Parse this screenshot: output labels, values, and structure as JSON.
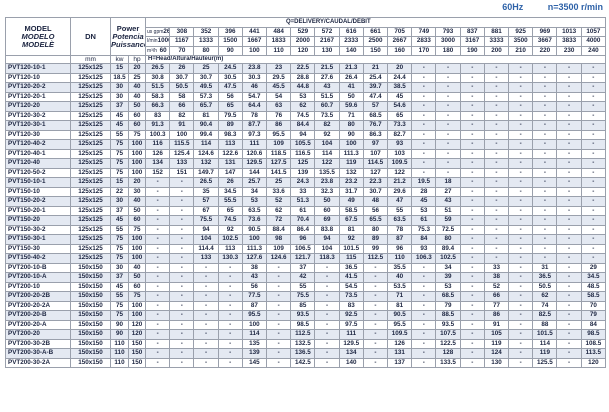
{
  "header": {
    "frequency": "60Hz",
    "speed": "n=3500 r/min"
  },
  "columns": {
    "model": [
      "MODEL",
      "MODELO",
      "MODELÈ"
    ],
    "dn": "DN",
    "dn_unit": "mm",
    "power": [
      "Power",
      "Potencia",
      "Puissance"
    ],
    "kw_unit": "kw",
    "hp_unit": "hp",
    "delivery": "Q=DELIVERY/CAUDAL/DÉBIT",
    "head": "H=Head/Altura/Hauteur(m)",
    "gpm_label": "us gpm",
    "lmin_label": "l/min",
    "m3h_label": "m³/h",
    "gpm": [
      "264",
      "308",
      "352",
      "396",
      "441",
      "484",
      "529",
      "572",
      "616",
      "661",
      "705",
      "749",
      "793",
      "837",
      "881",
      "925",
      "969",
      "1013",
      "1057"
    ],
    "lmin": [
      "1000",
      "1167",
      "1333",
      "1500",
      "1667",
      "1833",
      "2000",
      "2167",
      "2333",
      "2500",
      "2667",
      "2833",
      "3000",
      "3167",
      "3333",
      "3500",
      "3667",
      "3833",
      "4000"
    ],
    "m3h": [
      "60",
      "70",
      "80",
      "90",
      "100",
      "110",
      "120",
      "130",
      "140",
      "150",
      "160",
      "170",
      "180",
      "190",
      "200",
      "210",
      "220",
      "230",
      "240"
    ]
  },
  "rows": [
    {
      "model": "PVT120-10-1",
      "dn": "125x125",
      "kw": "15",
      "hp": "20",
      "values": [
        "26.5",
        "26",
        "25",
        "24.5",
        "23.8",
        "23",
        "22.5",
        "21.5",
        "21.3",
        "21",
        "20",
        "-",
        "-",
        "-",
        "-",
        "-",
        "-",
        "-",
        "-"
      ]
    },
    {
      "model": "PVT120-10",
      "dn": "125x125",
      "kw": "18.5",
      "hp": "25",
      "values": [
        "30.8",
        "30.7",
        "30.7",
        "30.5",
        "30.3",
        "29.5",
        "28.8",
        "27.6",
        "26.4",
        "25.4",
        "24.4",
        "-",
        "-",
        "-",
        "-",
        "-",
        "-",
        "-",
        "-"
      ]
    },
    {
      "model": "PVT120-20-2",
      "dn": "125x125",
      "kw": "30",
      "hp": "40",
      "values": [
        "51.5",
        "50.5",
        "49.5",
        "47.5",
        "46",
        "45.5",
        "44.8",
        "43",
        "41",
        "39.7",
        "38.5",
        "-",
        "-",
        "-",
        "-",
        "-",
        "-",
        "-",
        "-"
      ]
    },
    {
      "model": "PVT120-20-1",
      "dn": "125x125",
      "kw": "30",
      "hp": "40",
      "values": [
        "58.3",
        "58",
        "57.3",
        "56",
        "54.7",
        "54",
        "53",
        "51.5",
        "50",
        "47.4",
        "45",
        "-",
        "-",
        "-",
        "-",
        "-",
        "-",
        "-",
        "-"
      ]
    },
    {
      "model": "PVT120-20",
      "dn": "125x125",
      "kw": "37",
      "hp": "50",
      "values": [
        "66.3",
        "66",
        "65.7",
        "65",
        "64.4",
        "63",
        "62",
        "60.7",
        "59.6",
        "57",
        "54.6",
        "-",
        "-",
        "-",
        "-",
        "-",
        "-",
        "-",
        "-"
      ]
    },
    {
      "model": "PVT120-30-2",
      "dn": "125x125",
      "kw": "45",
      "hp": "60",
      "values": [
        "83",
        "82",
        "81",
        "79.5",
        "78",
        "76",
        "74.5",
        "73.5",
        "71",
        "68.5",
        "65",
        "-",
        "-",
        "-",
        "-",
        "-",
        "-",
        "-",
        "-"
      ]
    },
    {
      "model": "PVT120-30-1",
      "dn": "125x125",
      "kw": "45",
      "hp": "60",
      "values": [
        "91.3",
        "91",
        "90.4",
        "89",
        "87.7",
        "86",
        "84.4",
        "82",
        "80",
        "76.7",
        "73.3",
        "-",
        "-",
        "-",
        "-",
        "-",
        "-",
        "-",
        "-"
      ]
    },
    {
      "model": "PVT120-30",
      "dn": "125x125",
      "kw": "55",
      "hp": "75",
      "values": [
        "100.3",
        "100",
        "99.4",
        "98.3",
        "97.3",
        "95.5",
        "94",
        "92",
        "90",
        "86.3",
        "82.7",
        "-",
        "-",
        "-",
        "-",
        "-",
        "-",
        "-",
        "-"
      ]
    },
    {
      "model": "PVT120-40-2",
      "dn": "125x125",
      "kw": "75",
      "hp": "100",
      "values": [
        "116",
        "115.5",
        "114",
        "113",
        "111",
        "109",
        "105.5",
        "104",
        "100",
        "97",
        "93",
        "-",
        "-",
        "-",
        "-",
        "-",
        "-",
        "-",
        "-"
      ]
    },
    {
      "model": "PVT120-40-1",
      "dn": "125x125",
      "kw": "75",
      "hp": "100",
      "values": [
        "126",
        "125.4",
        "124.6",
        "122.6",
        "120.6",
        "118.5",
        "116.5",
        "114",
        "111.3",
        "107",
        "103",
        "-",
        "-",
        "-",
        "-",
        "-",
        "-",
        "-",
        "-"
      ]
    },
    {
      "model": "PVT120-40",
      "dn": "125x125",
      "kw": "75",
      "hp": "100",
      "values": [
        "134",
        "133",
        "132",
        "131",
        "129.5",
        "127.5",
        "125",
        "122",
        "119",
        "114.5",
        "109.5",
        "-",
        "-",
        "-",
        "-",
        "-",
        "-",
        "-",
        "-"
      ]
    },
    {
      "model": "PVT120-50-2",
      "dn": "125x125",
      "kw": "75",
      "hp": "100",
      "values": [
        "152",
        "151",
        "149.7",
        "147",
        "144",
        "141.5",
        "139",
        "135.5",
        "132",
        "127",
        "122",
        "-",
        "-",
        "-",
        "-",
        "-",
        "-",
        "-",
        "-"
      ]
    },
    {
      "model": "PVT150-10-1",
      "dn": "125x125",
      "kw": "15",
      "hp": "20",
      "group_start": true,
      "values": [
        "-",
        "-",
        "26.5",
        "26",
        "25.7",
        "25",
        "24.3",
        "23.8",
        "23.2",
        "22.3",
        "21.2",
        "19.5",
        "18",
        "-",
        "-",
        "-",
        "-",
        "-",
        "-"
      ]
    },
    {
      "model": "PVT150-10",
      "dn": "125x125",
      "kw": "22",
      "hp": "30",
      "values": [
        "-",
        "-",
        "35",
        "34.5",
        "34",
        "33.6",
        "33",
        "32.3",
        "31.7",
        "30.7",
        "29.6",
        "28",
        "27",
        "-",
        "-",
        "-",
        "-",
        "-",
        "-"
      ]
    },
    {
      "model": "PVT150-20-2",
      "dn": "125x125",
      "kw": "30",
      "hp": "40",
      "values": [
        "-",
        "-",
        "57",
        "55.5",
        "53",
        "52",
        "51.3",
        "50",
        "49",
        "48",
        "47",
        "45",
        "43",
        "-",
        "-",
        "-",
        "-",
        "-",
        "-"
      ]
    },
    {
      "model": "PVT150-20-1",
      "dn": "125x125",
      "kw": "37",
      "hp": "50",
      "values": [
        "-",
        "-",
        "67",
        "65",
        "63.5",
        "62",
        "61",
        "60",
        "58.5",
        "56",
        "55",
        "53",
        "51",
        "-",
        "-",
        "-",
        "-",
        "-",
        "-"
      ]
    },
    {
      "model": "PVT150-20",
      "dn": "125x125",
      "kw": "45",
      "hp": "60",
      "values": [
        "-",
        "-",
        "75.5",
        "74.5",
        "73.6",
        "72",
        "70.4",
        "69",
        "67.5",
        "65.5",
        "63.5",
        "61",
        "59",
        "-",
        "-",
        "-",
        "-",
        "-",
        "-"
      ]
    },
    {
      "model": "PVT150-30-2",
      "dn": "125x125",
      "kw": "55",
      "hp": "75",
      "values": [
        "-",
        "-",
        "94",
        "92",
        "90.5",
        "88.4",
        "86.4",
        "83.8",
        "81",
        "80",
        "78",
        "75.3",
        "72.5",
        "-",
        "-",
        "-",
        "-",
        "-",
        "-"
      ]
    },
    {
      "model": "PVT150-30-1",
      "dn": "125x125",
      "kw": "75",
      "hp": "100",
      "values": [
        "-",
        "-",
        "104",
        "102.5",
        "100",
        "98",
        "96",
        "94",
        "92",
        "89",
        "87",
        "84",
        "80",
        "-",
        "-",
        "-",
        "-",
        "-",
        "-"
      ]
    },
    {
      "model": "PVT150-30",
      "dn": "125x125",
      "kw": "75",
      "hp": "100",
      "values": [
        "-",
        "-",
        "114.4",
        "113",
        "111.3",
        "109",
        "106.5",
        "104",
        "101.5",
        "99",
        "96",
        "93",
        "89.4",
        "-",
        "-",
        "-",
        "-",
        "-",
        "-"
      ]
    },
    {
      "model": "PVT150-40-2",
      "dn": "125x125",
      "kw": "75",
      "hp": "100",
      "values": [
        "-",
        "-",
        "133",
        "130.3",
        "127.6",
        "124.6",
        "121.7",
        "118.3",
        "115",
        "112.5",
        "110",
        "106.3",
        "102.5",
        "-",
        "-",
        "-",
        "-",
        "-",
        "-"
      ]
    },
    {
      "model": "PVT200-10-B",
      "dn": "150x150",
      "kw": "30",
      "hp": "40",
      "group_start": true,
      "values": [
        "-",
        "-",
        "-",
        "-",
        "38",
        "-",
        "37",
        "-",
        "36.5",
        "-",
        "35.5",
        "-",
        "34",
        "-",
        "33",
        "-",
        "31",
        "-",
        "29"
      ]
    },
    {
      "model": "PVT200-10-A",
      "dn": "150x150",
      "kw": "37",
      "hp": "50",
      "values": [
        "-",
        "-",
        "-",
        "-",
        "43",
        "-",
        "42",
        "-",
        "41.5",
        "-",
        "40",
        "-",
        "39",
        "-",
        "38",
        "-",
        "36.5",
        "-",
        "34.5"
      ]
    },
    {
      "model": "PVT200-10",
      "dn": "150x150",
      "kw": "45",
      "hp": "60",
      "values": [
        "-",
        "-",
        "-",
        "-",
        "56",
        "-",
        "55",
        "-",
        "54.5",
        "-",
        "53.5",
        "-",
        "53",
        "-",
        "52",
        "-",
        "50.5",
        "-",
        "48.5"
      ]
    },
    {
      "model": "PVT200-20-2B",
      "dn": "150x150",
      "kw": "55",
      "hp": "75",
      "values": [
        "-",
        "-",
        "-",
        "-",
        "77.5",
        "-",
        "75.5",
        "-",
        "73.5",
        "-",
        "71",
        "-",
        "68.5",
        "-",
        "66",
        "-",
        "62",
        "-",
        "58.5"
      ]
    },
    {
      "model": "PVT200-20-2A",
      "dn": "150x150",
      "kw": "75",
      "hp": "100",
      "values": [
        "-",
        "-",
        "-",
        "-",
        "87",
        "-",
        "85",
        "-",
        "83",
        "-",
        "81",
        "-",
        "79",
        "-",
        "77",
        "-",
        "74",
        "-",
        "70"
      ]
    },
    {
      "model": "PVT200-20-B",
      "dn": "150x150",
      "kw": "75",
      "hp": "100",
      "values": [
        "-",
        "-",
        "-",
        "-",
        "95.5",
        "-",
        "93.5",
        "-",
        "92.5",
        "-",
        "90.5",
        "-",
        "88.5",
        "-",
        "86",
        "-",
        "82.5",
        "-",
        "79"
      ]
    },
    {
      "model": "PVT200-20-A",
      "dn": "150x150",
      "kw": "90",
      "hp": "120",
      "values": [
        "-",
        "-",
        "-",
        "-",
        "100",
        "-",
        "98.5",
        "-",
        "97.5",
        "-",
        "95.5",
        "-",
        "93.5",
        "-",
        "91",
        "-",
        "88",
        "-",
        "84"
      ]
    },
    {
      "model": "PVT200-20",
      "dn": "150x150",
      "kw": "90",
      "hp": "120",
      "values": [
        "-",
        "-",
        "-",
        "-",
        "114",
        "-",
        "112.5",
        "-",
        "111",
        "-",
        "109.5",
        "-",
        "107.5",
        "-",
        "105",
        "-",
        "101.5",
        "-",
        "98.5"
      ]
    },
    {
      "model": "PVT200-30-2B",
      "dn": "150x150",
      "kw": "110",
      "hp": "150",
      "values": [
        "-",
        "-",
        "-",
        "-",
        "135",
        "-",
        "132.5",
        "-",
        "129.5",
        "-",
        "126",
        "-",
        "122.5",
        "-",
        "119",
        "-",
        "114",
        "-",
        "108.5"
      ]
    },
    {
      "model": "PVT200-30-A-B",
      "dn": "150x150",
      "kw": "110",
      "hp": "150",
      "values": [
        "-",
        "-",
        "-",
        "-",
        "139",
        "-",
        "136.5",
        "-",
        "134",
        "-",
        "131",
        "-",
        "128",
        "-",
        "124",
        "-",
        "119",
        "-",
        "113.5"
      ]
    },
    {
      "model": "PVT200-30-2A",
      "dn": "150x150",
      "kw": "110",
      "hp": "150",
      "values": [
        "-",
        "-",
        "-",
        "-",
        "145",
        "-",
        "142.5",
        "-",
        "140",
        "-",
        "137",
        "-",
        "133.5",
        "-",
        "130",
        "-",
        "125.5",
        "-",
        "120"
      ]
    }
  ]
}
